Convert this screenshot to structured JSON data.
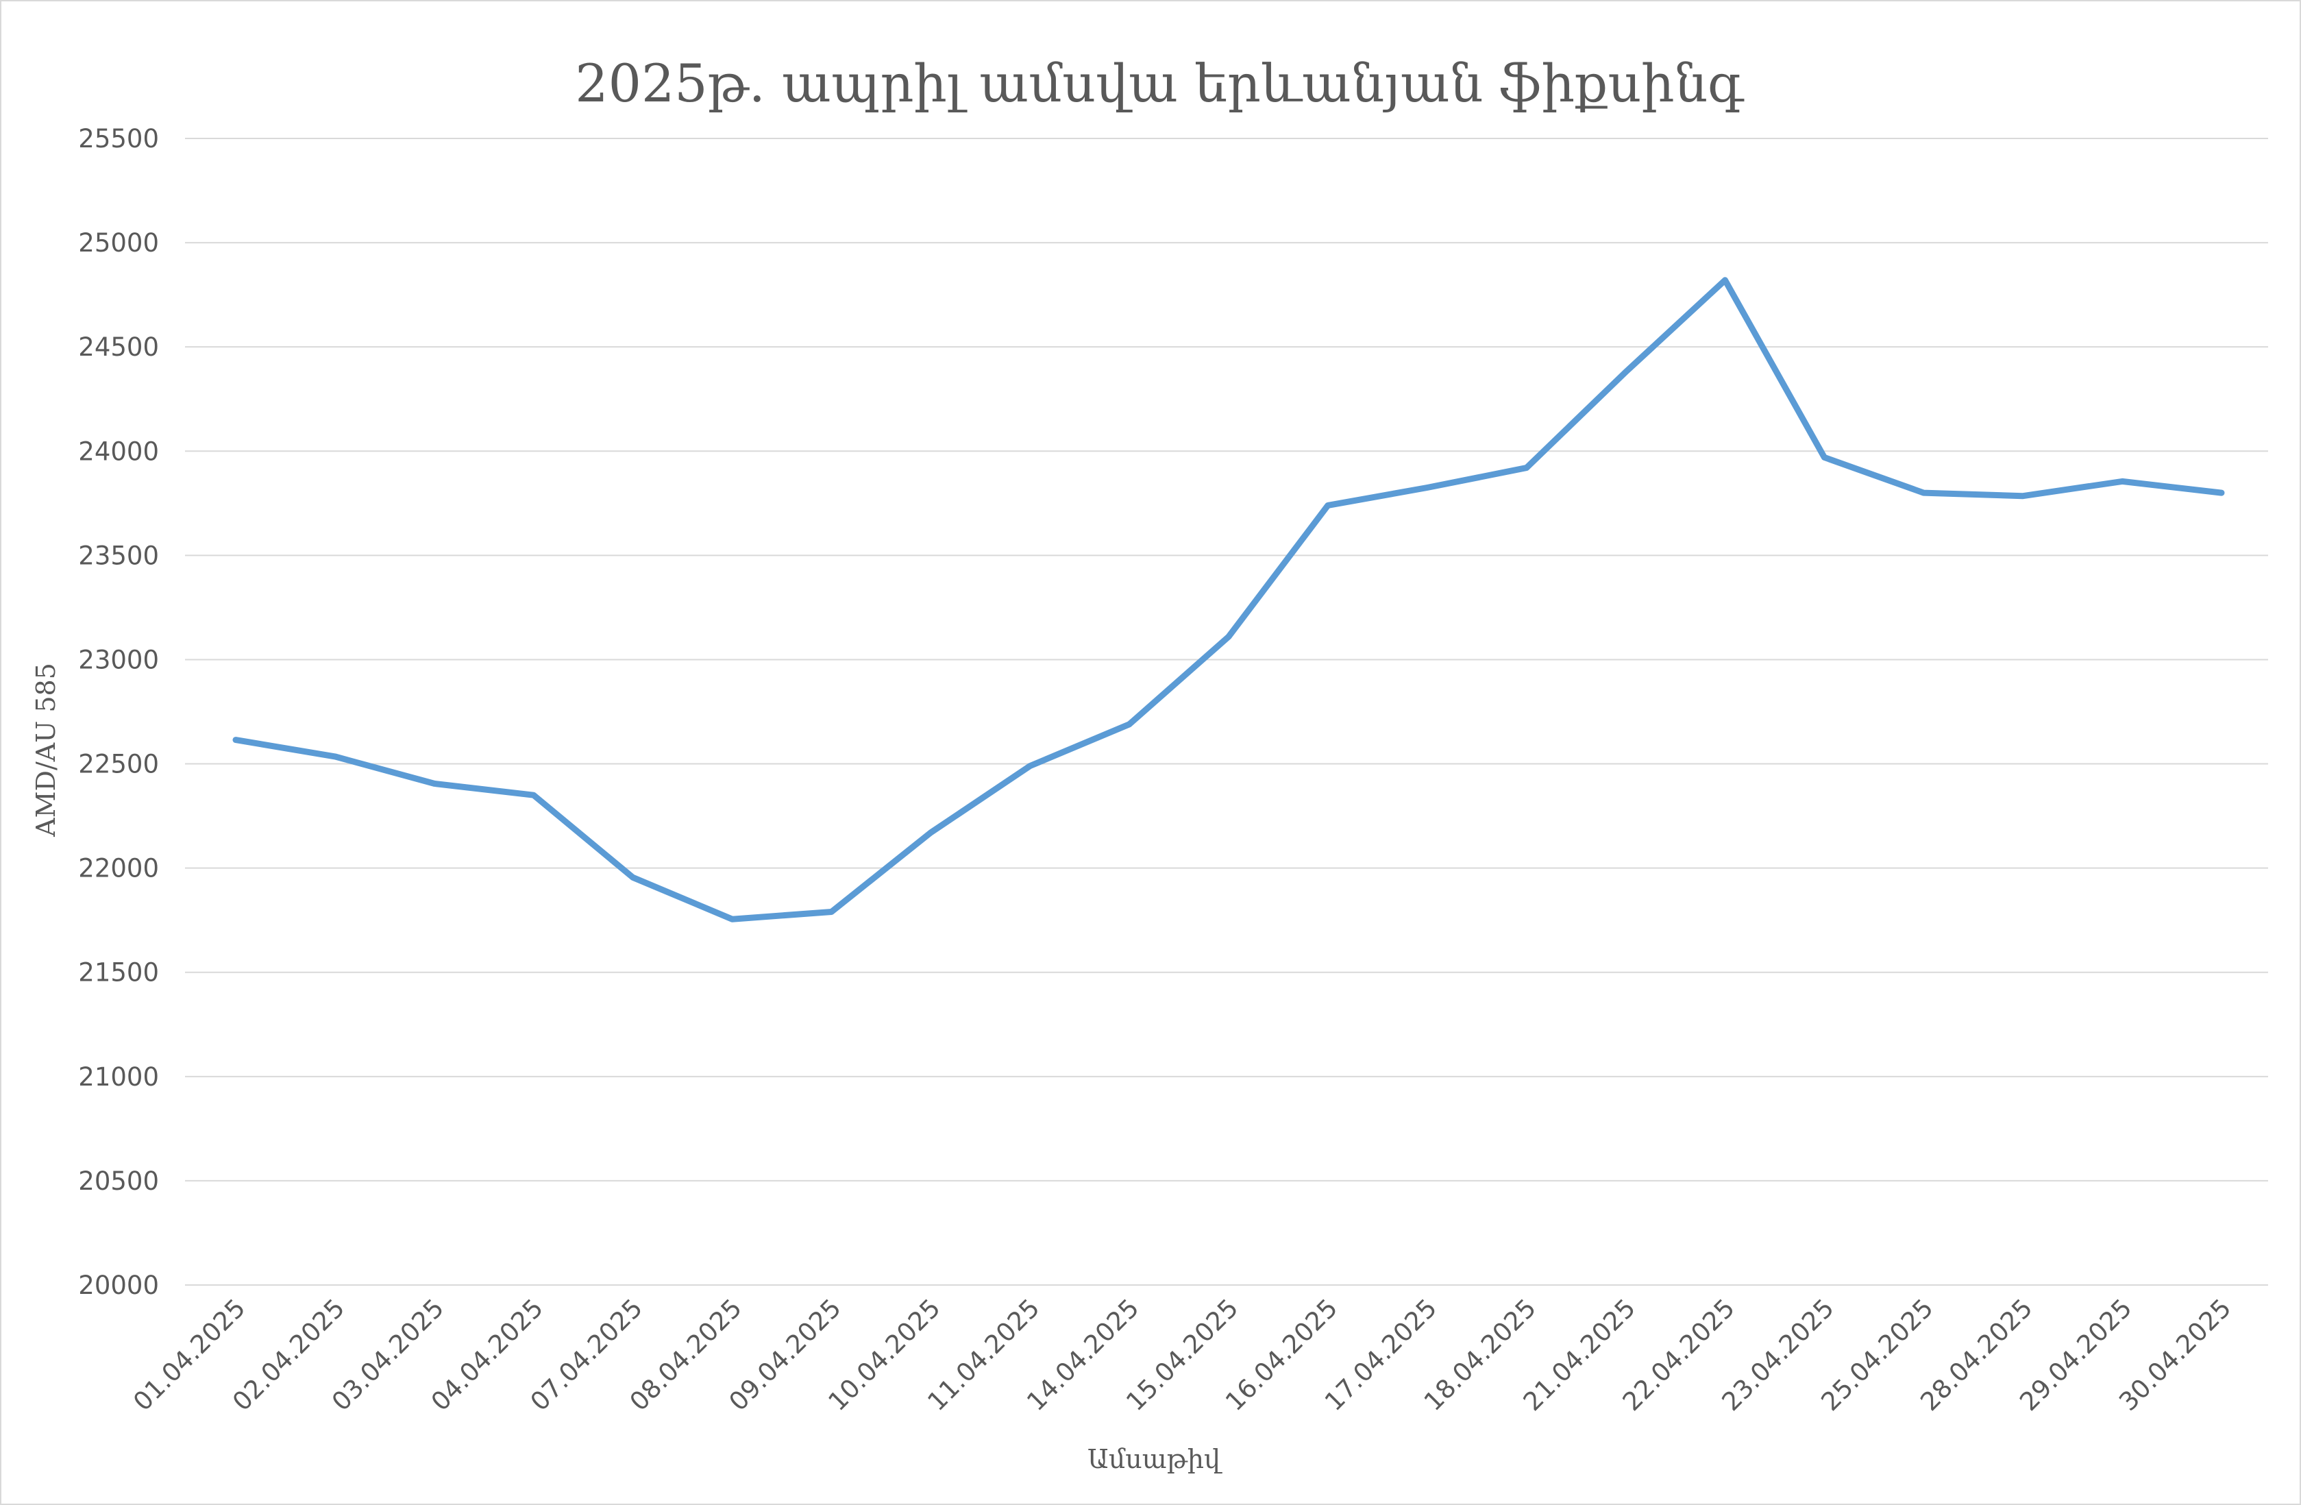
{
  "chart_data": {
    "type": "line",
    "title": "2025թ. ապրիլ ամսվա երևանյան ֆիքսինգ",
    "xlabel": "Ամսաթիվ",
    "ylabel": "AMD/AU 585",
    "ylim": [
      20000,
      25500
    ],
    "ytick_step": 500,
    "yticks": [
      "20000",
      "20500",
      "21000",
      "21500",
      "22000",
      "22500",
      "23000",
      "23500",
      "24000",
      "24500",
      "25000",
      "25500"
    ],
    "grid": true,
    "legend": "none",
    "categories": [
      "01.04.2025",
      "02.04.2025",
      "03.04.2025",
      "04.04.2025",
      "07.04.2025",
      "08.04.2025",
      "09.04.2025",
      "10.04.2025",
      "11.04.2025",
      "14.04.2025",
      "15.04.2025",
      "16.04.2025",
      "17.04.2025",
      "18.04.2025",
      "21.04.2025",
      "22.04.2025",
      "23.04.2025",
      "25.04.2025",
      "28.04.2025",
      "29.04.2025",
      "30.04.2025"
    ],
    "series": [
      {
        "values": [
          22615,
          22535,
          22405,
          22350,
          21955,
          21755,
          21790,
          22170,
          22490,
          22690,
          23110,
          23740,
          23825,
          23920,
          24380,
          24820,
          23970,
          23800,
          23785,
          23855,
          23800
        ],
        "color": "#5b9bd5"
      }
    ]
  },
  "colors": {
    "gridline": "#d9d9d9",
    "text": "#595959",
    "line": "#5b9bd5"
  }
}
